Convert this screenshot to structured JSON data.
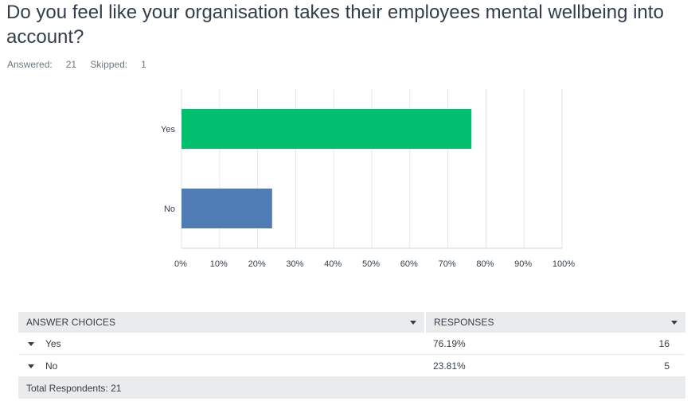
{
  "question": {
    "title": "Do you feel like your organisation takes their employees mental wellbeing into account?",
    "answered_label": "Answered:",
    "answered_value": "21",
    "skipped_label": "Skipped:",
    "skipped_value": "1"
  },
  "chart_data": {
    "type": "bar",
    "orientation": "horizontal",
    "categories": [
      "Yes",
      "No"
    ],
    "values": [
      76.19,
      23.81
    ],
    "colors": [
      "#00bf6f",
      "#507cb6"
    ],
    "xticks": [
      "0%",
      "10%",
      "20%",
      "30%",
      "40%",
      "50%",
      "60%",
      "70%",
      "80%",
      "90%",
      "100%"
    ],
    "xlim": [
      0,
      100
    ],
    "grid": true
  },
  "table": {
    "headers": [
      "ANSWER CHOICES",
      "RESPONSES"
    ],
    "rows": [
      {
        "choice": "Yes",
        "percent": "76.19%",
        "count": "16"
      },
      {
        "choice": "No",
        "percent": "23.81%",
        "count": "5"
      }
    ],
    "total_label": "Total Respondents: 21"
  }
}
